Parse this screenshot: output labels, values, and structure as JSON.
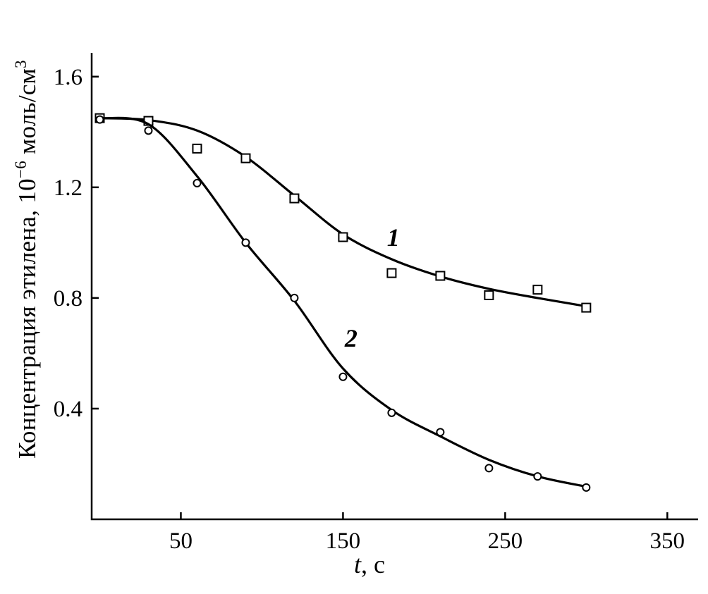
{
  "figure": {
    "background": "#ffffff"
  },
  "chart_data": {
    "type": "line",
    "title": "",
    "xlabel": {
      "italic": "t",
      "rest": ", с"
    },
    "ylabel": {
      "prefix": "Концентрация этилена, 10",
      "sup1": "−6",
      "mid": " моль/см",
      "sup2": "3"
    },
    "xlim": [
      -5,
      369
    ],
    "ylim": [
      0,
      1.686
    ],
    "xticks": [
      {
        "value": 50,
        "label": "50"
      },
      {
        "value": 150,
        "label": "150"
      },
      {
        "value": 250,
        "label": "250"
      },
      {
        "value": 350,
        "label": "350"
      }
    ],
    "yticks": [
      {
        "value": 0.4,
        "label": "0.4"
      },
      {
        "value": 0.8,
        "label": "0.8"
      },
      {
        "value": 1.2,
        "label": "1.2"
      },
      {
        "value": 1.6,
        "label": "1.6"
      }
    ],
    "grid": false,
    "legend": "none",
    "axis_color": "#000000",
    "line_color": "#000000",
    "marker_fill": "#ffffff",
    "series": [
      {
        "name": "1",
        "marker": "square",
        "label": {
          "text": "1",
          "x": 181,
          "y": 1.02
        },
        "points": [
          [
            0,
            1.45
          ],
          [
            30,
            1.44
          ],
          [
            60,
            1.34
          ],
          [
            90,
            1.305
          ],
          [
            120,
            1.16
          ],
          [
            150,
            1.02
          ],
          [
            180,
            0.89
          ],
          [
            210,
            0.88
          ],
          [
            240,
            0.81
          ],
          [
            270,
            0.83
          ],
          [
            300,
            0.765
          ]
        ],
        "curve": [
          [
            0,
            1.45
          ],
          [
            30,
            1.443
          ],
          [
            60,
            1.405
          ],
          [
            90,
            1.31
          ],
          [
            120,
            1.17
          ],
          [
            150,
            1.03
          ],
          [
            180,
            0.94
          ],
          [
            210,
            0.878
          ],
          [
            240,
            0.833
          ],
          [
            270,
            0.8
          ],
          [
            300,
            0.77
          ]
        ]
      },
      {
        "name": "2",
        "marker": "circle",
        "label": {
          "text": "2",
          "x": 155,
          "y": 0.655
        },
        "points": [
          [
            0,
            1.445
          ],
          [
            30,
            1.405
          ],
          [
            60,
            1.215
          ],
          [
            90,
            1.0
          ],
          [
            120,
            0.8
          ],
          [
            150,
            0.515
          ],
          [
            180,
            0.385
          ],
          [
            210,
            0.315
          ],
          [
            240,
            0.185
          ],
          [
            270,
            0.155
          ],
          [
            300,
            0.115
          ]
        ],
        "curve": [
          [
            0,
            1.45
          ],
          [
            30,
            1.428
          ],
          [
            60,
            1.24
          ],
          [
            90,
            1.0
          ],
          [
            120,
            0.79
          ],
          [
            150,
            0.545
          ],
          [
            180,
            0.395
          ],
          [
            210,
            0.3
          ],
          [
            240,
            0.215
          ],
          [
            270,
            0.155
          ],
          [
            300,
            0.118
          ]
        ]
      }
    ]
  }
}
